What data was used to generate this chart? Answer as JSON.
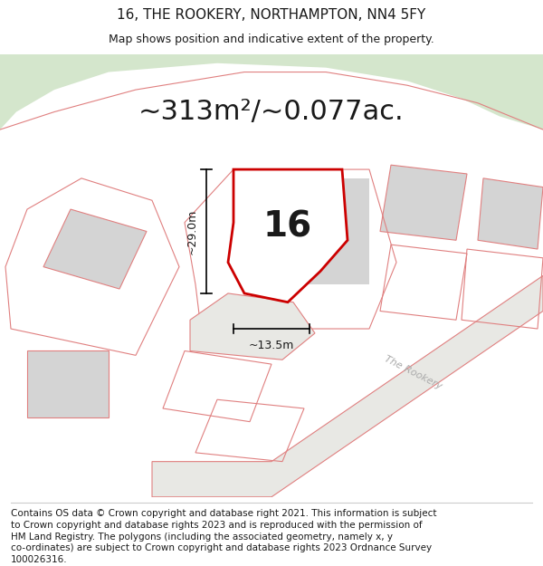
{
  "title": "16, THE ROOKERY, NORTHAMPTON, NN4 5FY",
  "subtitle": "Map shows position and indicative extent of the property.",
  "area_text": "~313m²/~0.077ac.",
  "dim_vertical": "~29.0m",
  "dim_horizontal": "~13.5m",
  "label_number": "16",
  "road_label": "The Rookery",
  "footer_lines": [
    "Contains OS data © Crown copyright and database right 2021. This information is subject",
    "to Crown copyright and database rights 2023 and is reproduced with the permission of",
    "HM Land Registry. The polygons (including the associated geometry, namely x, y",
    "co-ordinates) are subject to Crown copyright and database rights 2023 Ordnance Survey",
    "100026316."
  ],
  "map_bg": "#f2f2f0",
  "green_area_color": "#d4e6cc",
  "pink_outline_color": "#e08080",
  "red_outline_color": "#cc0000",
  "gray_building_color": "#d4d4d4",
  "white_color": "#ffffff",
  "title_fontsize": 11,
  "subtitle_fontsize": 9,
  "area_fontsize": 22,
  "label_fontsize": 28,
  "footer_fontsize": 7.5,
  "dim_fontsize": 9
}
